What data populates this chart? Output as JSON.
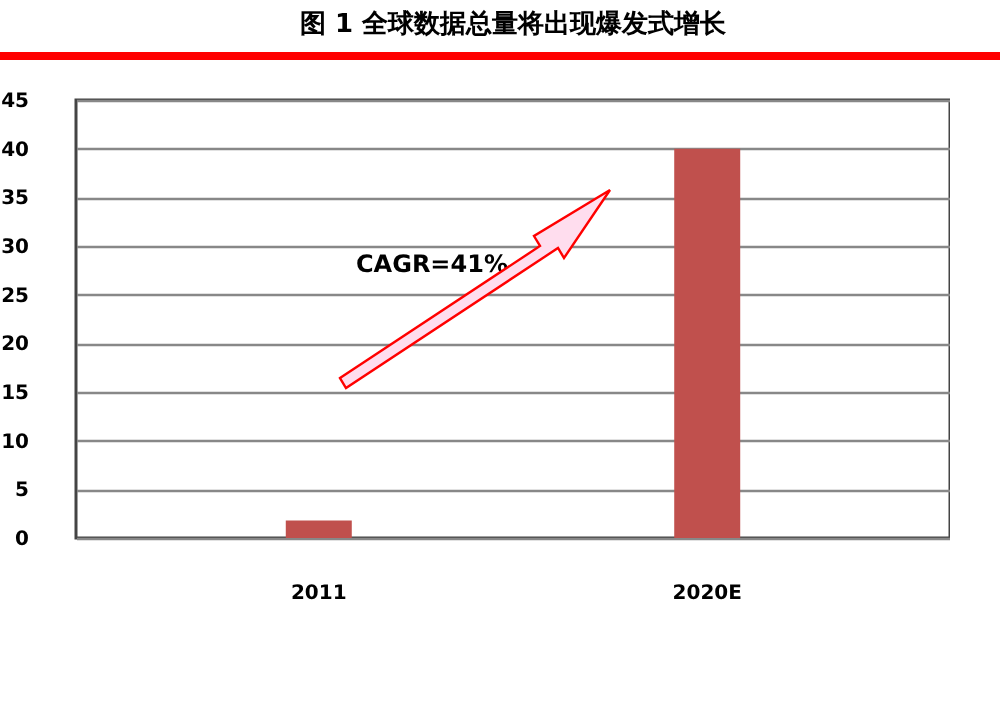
{
  "chart_data": {
    "type": "bar",
    "title": "图 1 全球数据总量将出现爆发式增长",
    "categories": [
      "2011",
      "2020E"
    ],
    "values": [
      1.8,
      40
    ],
    "color": "#c0504d",
    "ylim": [
      0,
      45
    ],
    "yticks": [
      0,
      5,
      10,
      15,
      20,
      25,
      30,
      35,
      40,
      45
    ],
    "grid": "y",
    "annotations": [
      "CAGR=41%"
    ]
  }
}
